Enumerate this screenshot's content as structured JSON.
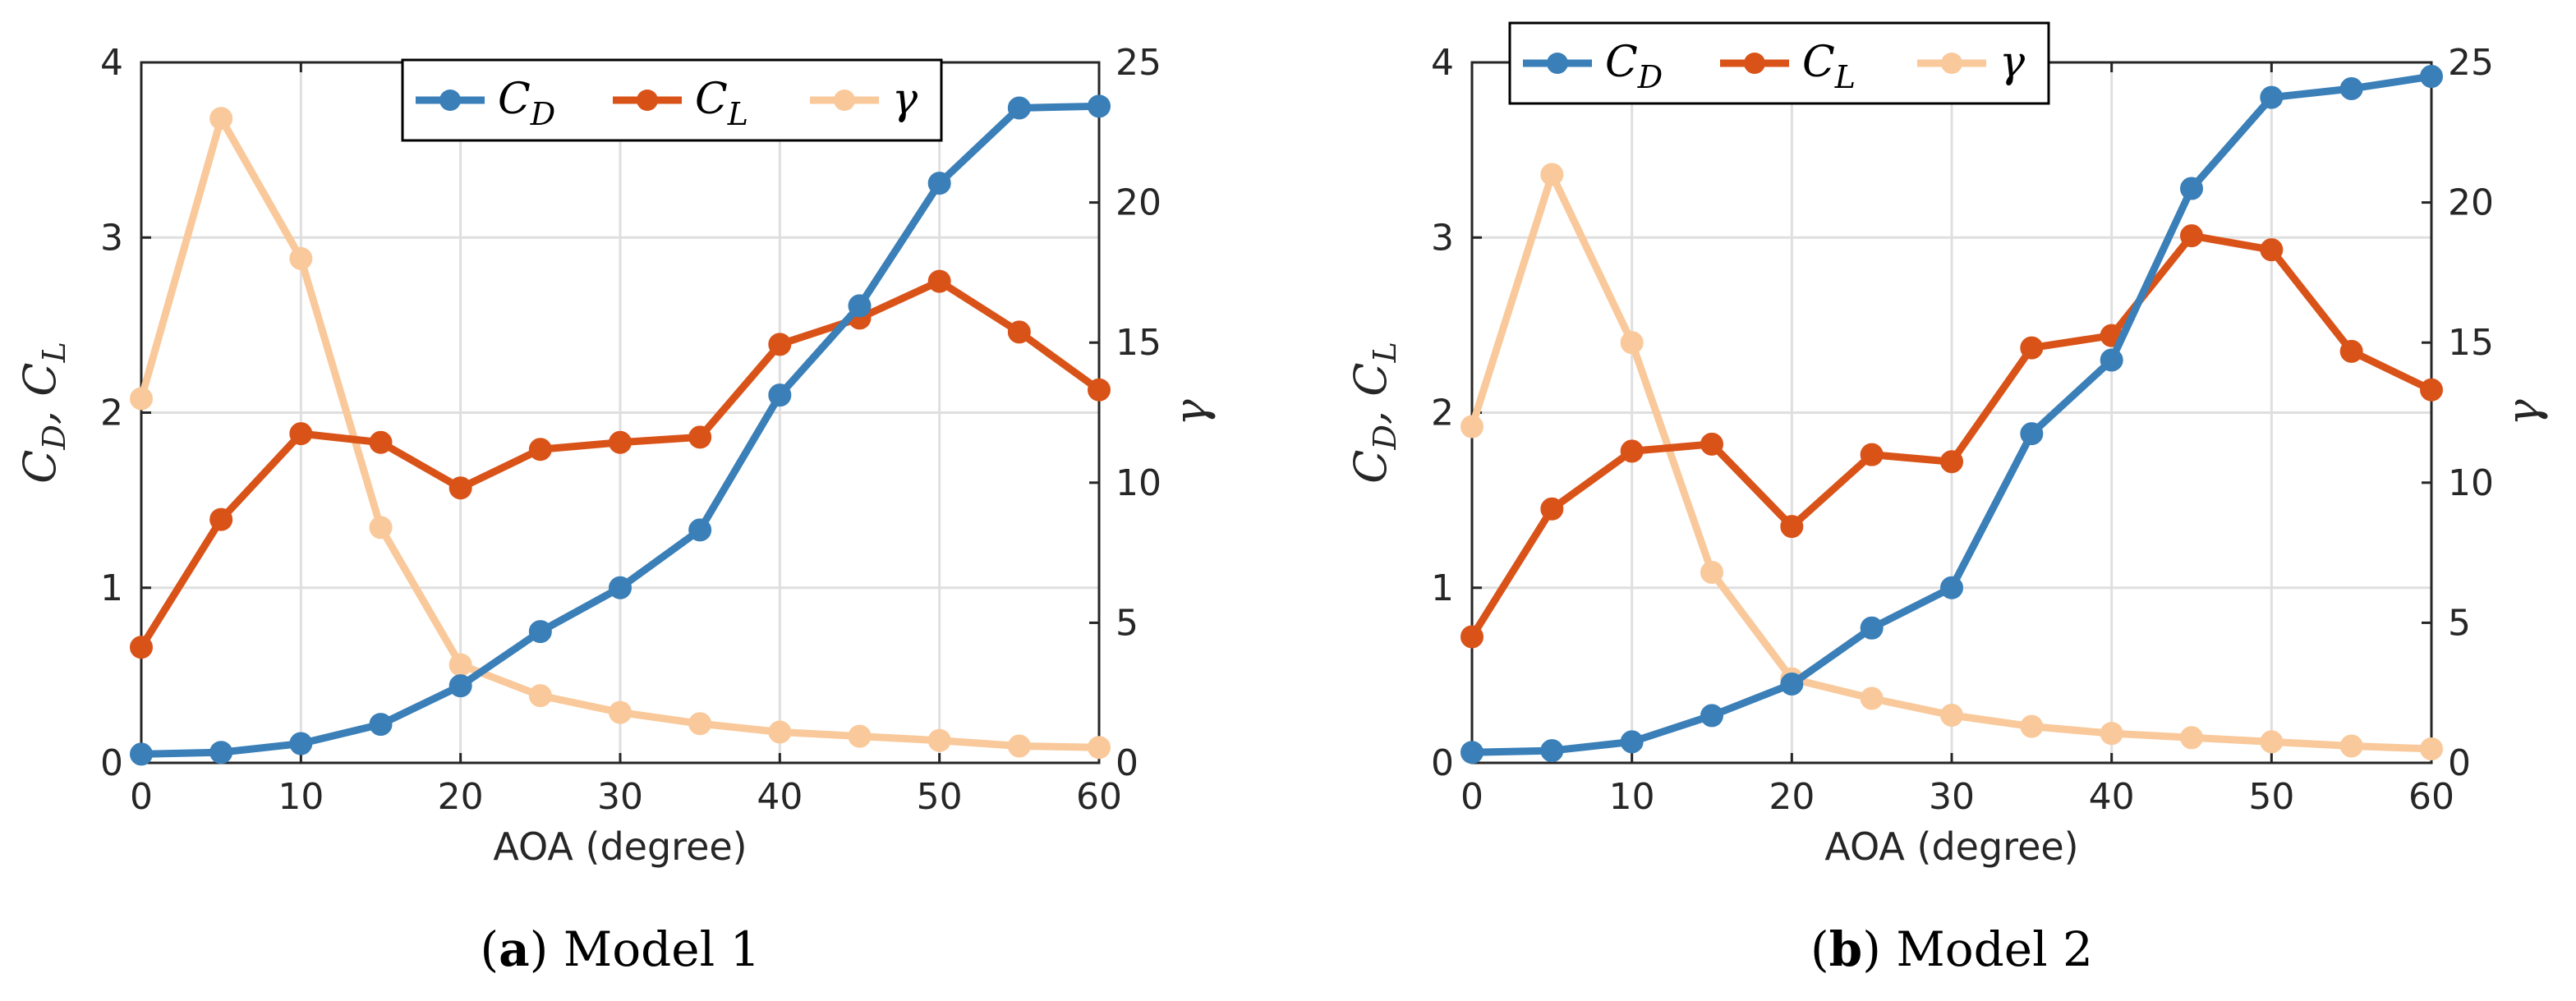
{
  "figure": {
    "colors": {
      "CD": "#3a7fb8",
      "CL": "#d95319",
      "gamma": "#f9c99b",
      "axis": "#262626",
      "grid": "#dfdfdf"
    }
  },
  "chart_data": [
    {
      "type": "line",
      "caption_letter": "a",
      "caption_text": "Model 1",
      "xlabel": "AOA (degree)",
      "ylabel_left": {
        "main1": "C",
        "sub1": "D",
        "sep": ",",
        "main2": "C",
        "sub2": "L"
      },
      "ylabel_right": "γ",
      "x": [
        0,
        5,
        10,
        15,
        20,
        25,
        30,
        35,
        40,
        45,
        50,
        55,
        60
      ],
      "xlim": [
        0,
        60
      ],
      "ylim_left": [
        0,
        4
      ],
      "ylim_right": [
        0,
        25
      ],
      "x_ticks": [
        "0",
        "10",
        "20",
        "30",
        "40",
        "50",
        "60"
      ],
      "y_left_ticks": [
        "0",
        "1",
        "2",
        "3",
        "4"
      ],
      "y_right_ticks": [
        "0",
        "5",
        "10",
        "15",
        "20",
        "25"
      ],
      "grid": true,
      "legend_position": "top-right",
      "series": [
        {
          "key": "CD",
          "name": "C",
          "sub": "D",
          "axis": "left",
          "values": [
            0.05,
            0.06,
            0.11,
            0.22,
            0.44,
            0.75,
            1.0,
            1.33,
            2.1,
            2.61,
            3.31,
            3.74,
            3.75
          ]
        },
        {
          "key": "CL",
          "name": "C",
          "sub": "L",
          "axis": "left",
          "values": [
            0.66,
            1.39,
            1.88,
            1.83,
            1.57,
            1.79,
            1.83,
            1.86,
            2.39,
            2.54,
            2.75,
            2.46,
            2.13
          ]
        },
        {
          "key": "gamma",
          "name": "γ",
          "sub": "",
          "axis": "right",
          "values": [
            13.0,
            23.0,
            18.0,
            8.4,
            3.5,
            2.4,
            1.8,
            1.4,
            1.1,
            0.95,
            0.8,
            0.6,
            0.55
          ]
        }
      ]
    },
    {
      "type": "line",
      "caption_letter": "b",
      "caption_text": "Model 2",
      "xlabel": "AOA (degree)",
      "ylabel_left": {
        "main1": "C",
        "sub1": "D",
        "sep": ",",
        "main2": "C",
        "sub2": "L"
      },
      "ylabel_right": "γ",
      "x": [
        0,
        5,
        10,
        15,
        20,
        25,
        30,
        35,
        40,
        45,
        50,
        55,
        60
      ],
      "xlim": [
        0,
        60
      ],
      "ylim_left": [
        0,
        4
      ],
      "ylim_right": [
        0,
        25
      ],
      "x_ticks": [
        "0",
        "10",
        "20",
        "30",
        "40",
        "50",
        "60"
      ],
      "y_left_ticks": [
        "0",
        "1",
        "2",
        "3",
        "4"
      ],
      "y_right_ticks": [
        "0",
        "5",
        "10",
        "15",
        "20",
        "25"
      ],
      "grid": true,
      "legend_position": "top",
      "series": [
        {
          "key": "CD",
          "name": "C",
          "sub": "D",
          "axis": "left",
          "values": [
            0.06,
            0.07,
            0.12,
            0.27,
            0.45,
            0.77,
            1.0,
            1.88,
            2.3,
            3.28,
            3.8,
            3.85,
            3.92
          ]
        },
        {
          "key": "CL",
          "name": "C",
          "sub": "L",
          "axis": "left",
          "values": [
            0.72,
            1.45,
            1.78,
            1.82,
            1.35,
            1.76,
            1.72,
            2.37,
            2.44,
            3.01,
            2.93,
            2.35,
            2.13
          ]
        },
        {
          "key": "gamma",
          "name": "γ",
          "sub": "",
          "axis": "right",
          "values": [
            12.0,
            21.0,
            15.0,
            6.8,
            3.0,
            2.3,
            1.7,
            1.3,
            1.05,
            0.9,
            0.75,
            0.6,
            0.5
          ]
        }
      ]
    }
  ]
}
